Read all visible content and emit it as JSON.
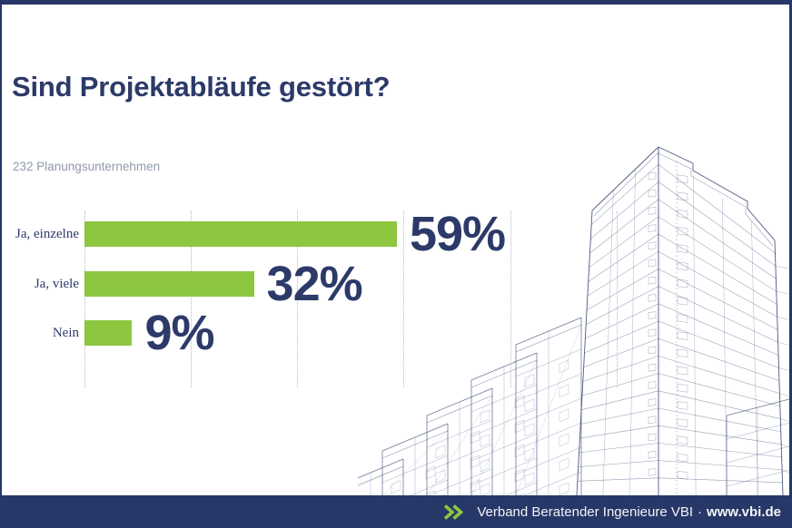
{
  "header": {
    "title": "Sind Projektabläufe gestört?",
    "subtitle": "232 Planungsunternehmen"
  },
  "chart_data": {
    "type": "bar",
    "orientation": "horizontal",
    "title": "Sind Projektabläufe gestört?",
    "subtitle": "232 Planungsunternehmen",
    "categories": [
      "Ja, einzelne",
      "Ja, viele",
      "Nein"
    ],
    "values": [
      59,
      32,
      9
    ],
    "value_labels": [
      "59%",
      "32%",
      "9%"
    ],
    "unit": "%",
    "axis": {
      "min": 0,
      "max": 100,
      "gridline_step": 20,
      "gridlines": [
        0,
        20,
        40,
        60,
        80,
        100
      ],
      "tick_labels_visible": false
    },
    "legend": "none",
    "grid": "vertical-dotted",
    "bar_color": "#8dc63f",
    "value_label_color": "#2c3a69"
  },
  "footer": {
    "organization": "Verband Beratender Ingenieure VBI",
    "separator": "·",
    "website": "www.vbi.de",
    "chevron_icon": "double-chevron-right"
  },
  "illustration": {
    "name": "wireframe-skyscraper"
  },
  "colors": {
    "navy": "#273767",
    "text_navy": "#2c3a69",
    "green": "#8dc63f",
    "subtitle_gray": "#9199a9",
    "gridline": "#b4bac6",
    "background": "#ffffff",
    "footer_text": "#f2f4f8",
    "building_line": "#2f3e6e"
  }
}
